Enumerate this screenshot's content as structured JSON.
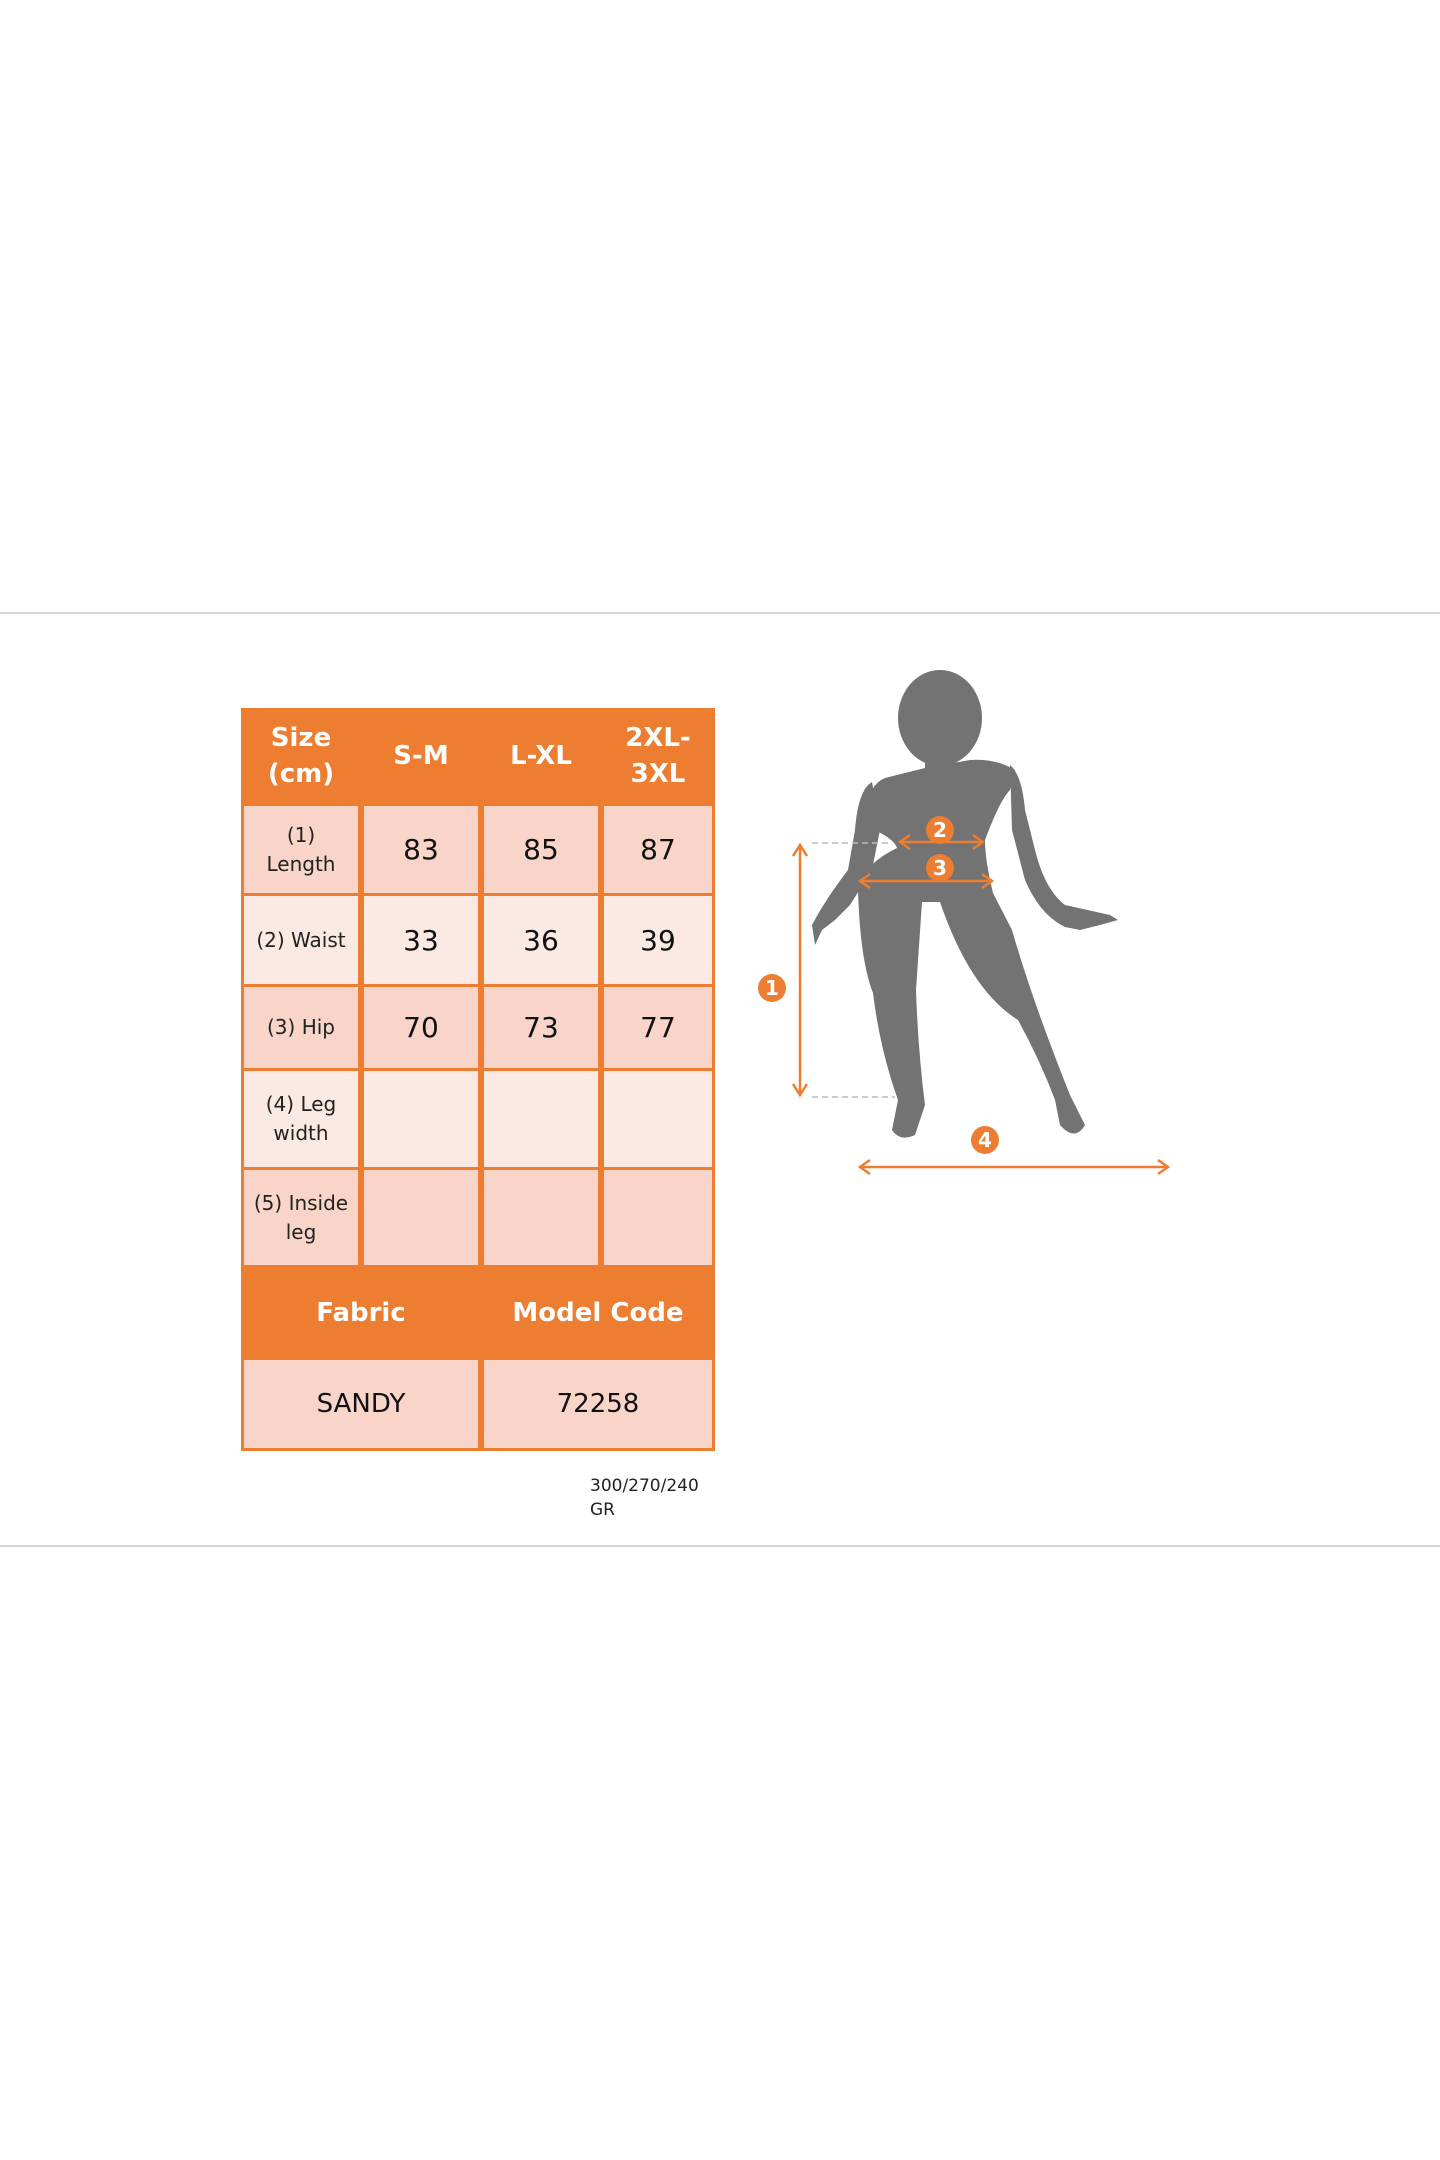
{
  "table": {
    "header": {
      "size": "Size (cm)",
      "columns": [
        "S-M",
        "L-XL",
        "2XL-3XL"
      ]
    },
    "rows": [
      {
        "label": "(1) Length",
        "values": [
          "83",
          "85",
          "87"
        ]
      },
      {
        "label": "(2) Waist",
        "values": [
          "33",
          "36",
          "39"
        ]
      },
      {
        "label": "(3) Hip",
        "values": [
          "70",
          "73",
          "77"
        ]
      },
      {
        "label": "(4) Leg width",
        "values": [
          "",
          "",
          ""
        ]
      },
      {
        "label": "(5) Inside leg",
        "values": [
          "",
          "",
          ""
        ]
      }
    ],
    "fabric_label": "Fabric",
    "model_code_label": "Model Code",
    "fabric": "SANDY",
    "model_code": "72258"
  },
  "weight_note": "300/270/240 GR",
  "figure": {
    "markers": [
      "1",
      "2",
      "3",
      "4"
    ],
    "accent_color": "#ed7d31",
    "silhouette_color": "#737373"
  }
}
